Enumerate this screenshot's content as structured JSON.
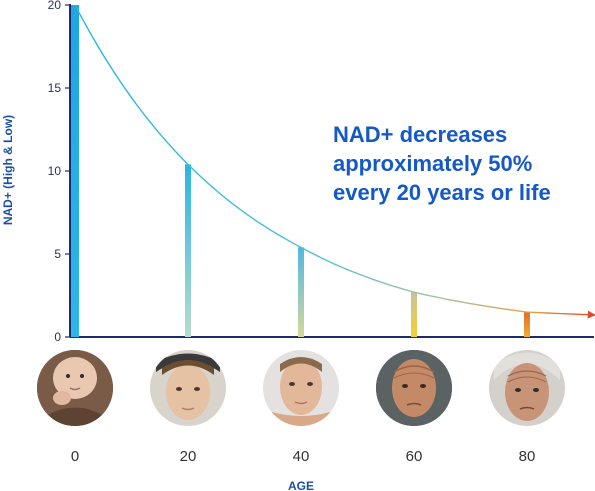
{
  "chart_data": {
    "type": "line",
    "xlabel": "AGE",
    "ylabel": "NAD+ (High & Low)",
    "ylim": [
      0,
      20
    ],
    "y_ticks": [
      "0",
      "5",
      "10",
      "15",
      "20"
    ],
    "x_labels": [
      "0",
      "20",
      "40",
      "60",
      "80"
    ],
    "x": [
      0,
      20,
      40,
      60,
      80
    ],
    "values": [
      20,
      10.4,
      5.4,
      2.7,
      1.5
    ],
    "annotation": [
      "NAD+ decreases",
      "approximately 50%",
      "every 20 years or life"
    ],
    "grid": false,
    "colors": {
      "axis": "#1e2a6e",
      "curve_start": "#25b6e6",
      "curve_mid": "#a8c0a0",
      "curve_end": "#e8452a",
      "bar_0": "#1fa6e0",
      "bar_20": "#2bb5e0",
      "bar_40": "#8fc6c0",
      "bar_60": "#f0c83a",
      "bar_80": "#e4902a",
      "text_blue": "#1559c7"
    }
  },
  "faces": [
    {
      "label": "0",
      "icon": "baby-face-icon"
    },
    {
      "label": "20",
      "icon": "young-man-face-icon"
    },
    {
      "label": "40",
      "icon": "adult-man-face-icon"
    },
    {
      "label": "60",
      "icon": "older-man-face-icon"
    },
    {
      "label": "80",
      "icon": "elderly-man-face-icon"
    }
  ]
}
